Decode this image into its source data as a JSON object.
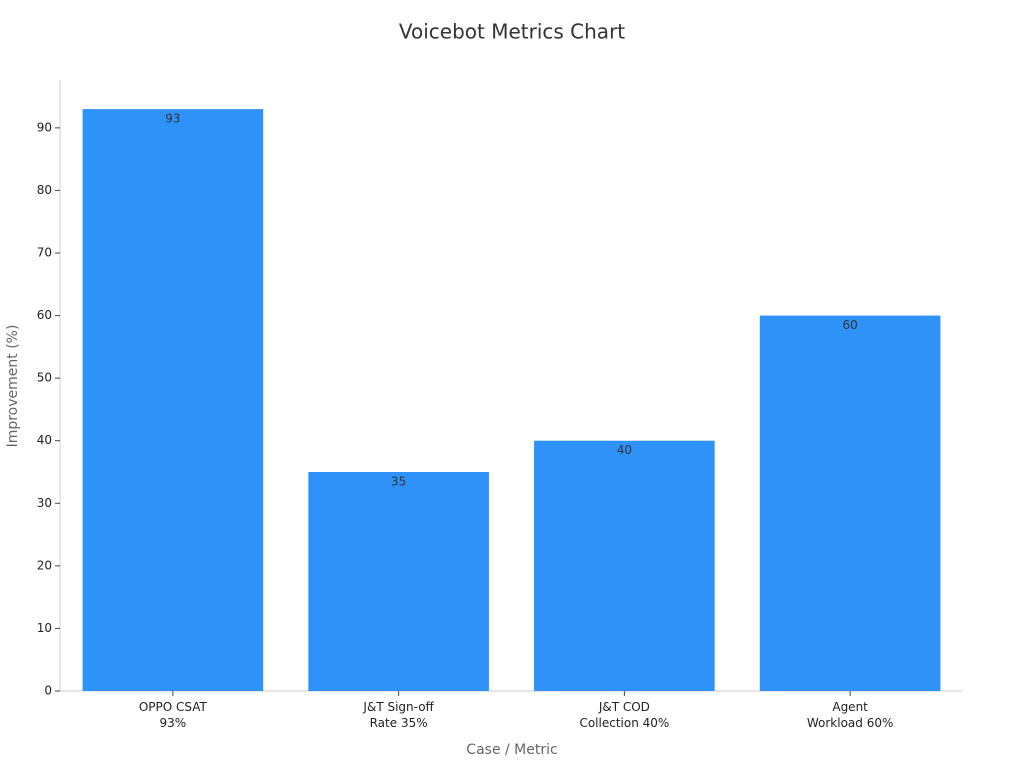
{
  "chart_data": {
    "type": "bar",
    "title": "Voicebot Metrics Chart",
    "x_label": "Case / Metric",
    "y_label": "Improvement (%)",
    "categories": [
      "OPPO CSAT\n93%",
      "J&T Sign-off\nRate 35%",
      "J&T COD\nCollection 40%",
      "Agent\nWorkload 60%"
    ],
    "values": [
      93,
      35,
      40,
      60
    ],
    "color": "#2f92f9",
    "ylim": [
      0,
      97.65
    ],
    "yticks": [
      0,
      10,
      20,
      30,
      40,
      50,
      60,
      70,
      80,
      90
    ],
    "grid": false
  }
}
